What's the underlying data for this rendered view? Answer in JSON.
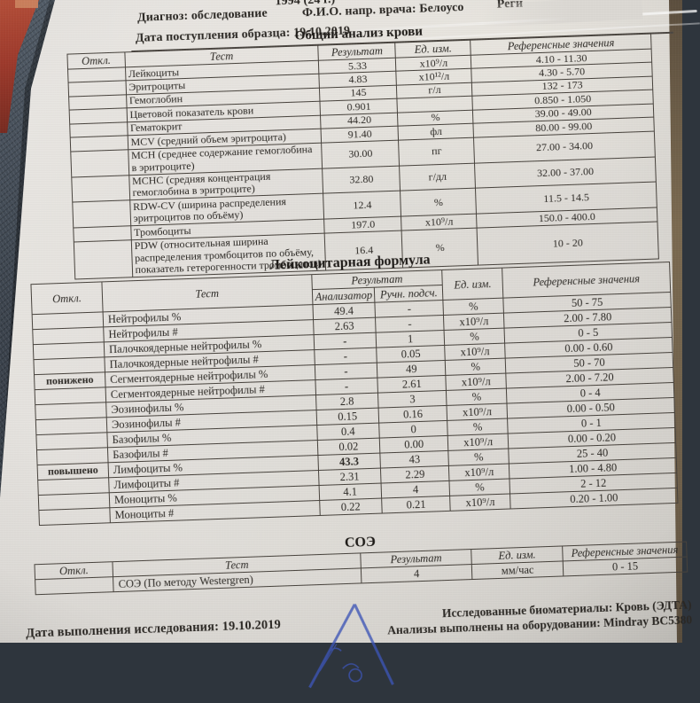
{
  "header": {
    "top_partial_left": "1994 (24 г.)",
    "top_partial_right": "Реги",
    "diagnosis_label": "Диагноз:",
    "diagnosis_value": "обследование",
    "doctor_line": "Ф.И.О. напр. врача: Белоусо",
    "sample_date_label": "Дата поступления образца:",
    "sample_date_value": "19.10.2019"
  },
  "tables": {
    "cbc": {
      "title": "Общий анализ крови",
      "headers": {
        "otkl": "Откл.",
        "test": "Тест",
        "result": "Результат",
        "unit": "Ед. изм.",
        "ref": "Референсные значения"
      },
      "rows": [
        {
          "otkl": "",
          "test": "Лейкоциты",
          "result": "5.33",
          "unit": "x10⁹/л",
          "ref": "4.10 - 11.30"
        },
        {
          "otkl": "",
          "test": "Эритроциты",
          "result": "4.83",
          "unit": "x10¹²/л",
          "ref": "4.30 - 5.70"
        },
        {
          "otkl": "",
          "test": "Гемоглобин",
          "result": "145",
          "unit": "г/л",
          "ref": "132 - 173"
        },
        {
          "otkl": "",
          "test": "Цветовой показатель крови",
          "result": "0.901",
          "unit": "",
          "ref": "0.850 - 1.050"
        },
        {
          "otkl": "",
          "test": "Гематокрит",
          "result": "44.20",
          "unit": "%",
          "ref": "39.00 - 49.00"
        },
        {
          "otkl": "",
          "test": "MCV (средний объем эритроцита)",
          "result": "91.40",
          "unit": "фл",
          "ref": "80.00 - 99.00"
        },
        {
          "otkl": "",
          "test": "MCH (среднее содержание гемоглобина в эритроците)",
          "result": "30.00",
          "unit": "пг",
          "ref": "27.00 - 34.00"
        },
        {
          "otkl": "",
          "test": "MCHC (средняя концентрация гемоглобина в эритроците)",
          "result": "32.80",
          "unit": "г/дл",
          "ref": "32.00 - 37.00"
        },
        {
          "otkl": "",
          "test": "RDW-CV (ширина распределения эритроцитов по объёму)",
          "result": "12.4",
          "unit": "%",
          "ref": "11.5 - 14.5"
        },
        {
          "otkl": "",
          "test": "Тромбоциты",
          "result": "197.0",
          "unit": "x10⁹/л",
          "ref": "150.0 - 400.0"
        },
        {
          "otkl": "",
          "test": "PDW (относительная ширина распределения тромбоцитов по объёму, показатель гетерогенности тромбоцитов)",
          "result": "16.4",
          "unit": "%",
          "ref": "10 - 20"
        }
      ]
    },
    "leukocyte": {
      "title": "Лейкоцитарная формула",
      "headers": {
        "otkl": "Откл.",
        "test": "Тест",
        "result": "Результат",
        "analyzer": "Анализатор",
        "manual": "Ручн. подсч.",
        "unit": "Ед. изм.",
        "ref": "Референсные значения"
      },
      "rows": [
        {
          "otkl": "",
          "test": "Нейтрофилы %",
          "analyzer": "49.4",
          "manual": "-",
          "unit": "%",
          "ref": "50 - 75"
        },
        {
          "otkl": "",
          "test": "Нейтрофилы #",
          "analyzer": "2.63",
          "manual": "-",
          "unit": "x10⁹/л",
          "ref": "2.00 - 7.80"
        },
        {
          "otkl": "",
          "test": "Палочкоядерные нейтрофилы %",
          "analyzer": "-",
          "manual": "1",
          "unit": "%",
          "ref": "0 - 5",
          "bold": [
            "analyzer"
          ]
        },
        {
          "otkl": "",
          "test": "Палочкоядерные нейтрофилы #",
          "analyzer": "-",
          "manual": "0.05",
          "unit": "x10⁹/л",
          "ref": "0.00 - 0.60",
          "bold": [
            "analyzer"
          ]
        },
        {
          "otkl": "понижено",
          "test": "Сегментоядерные нейтрофилы %",
          "analyzer": "-",
          "manual": "49",
          "unit": "%",
          "ref": "50 - 70",
          "bold": [
            "otkl",
            "analyzer"
          ]
        },
        {
          "otkl": "",
          "test": "Сегментоядерные нейтрофилы #",
          "analyzer": "-",
          "manual": "2.61",
          "unit": "x10⁹/л",
          "ref": "2.00 - 7.20",
          "bold": [
            "analyzer"
          ]
        },
        {
          "otkl": "",
          "test": "Эозинофилы %",
          "analyzer": "2.8",
          "manual": "3",
          "unit": "%",
          "ref": "0 - 4"
        },
        {
          "otkl": "",
          "test": "Эозинофилы #",
          "analyzer": "0.15",
          "manual": "0.16",
          "unit": "x10⁹/л",
          "ref": "0.00 - 0.50"
        },
        {
          "otkl": "",
          "test": "Базофилы %",
          "analyzer": "0.4",
          "manual": "0",
          "unit": "%",
          "ref": "0 - 1"
        },
        {
          "otkl": "",
          "test": "Базофилы #",
          "analyzer": "0.02",
          "manual": "0.00",
          "unit": "x10⁹/л",
          "ref": "0.00 - 0.20"
        },
        {
          "otkl": "повышено",
          "test": "Лимфоциты %",
          "analyzer": "43.3",
          "manual": "43",
          "unit": "%",
          "ref": "25 - 40",
          "bold": [
            "otkl",
            "analyzer"
          ]
        },
        {
          "otkl": "",
          "test": "Лимфоциты #",
          "analyzer": "2.31",
          "manual": "2.29",
          "unit": "x10⁹/л",
          "ref": "1.00 - 4.80"
        },
        {
          "otkl": "",
          "test": "Моноциты %",
          "analyzer": "4.1",
          "manual": "4",
          "unit": "%",
          "ref": "2 - 12"
        },
        {
          "otkl": "",
          "test": "Моноциты #",
          "analyzer": "0.22",
          "manual": "0.21",
          "unit": "x10⁹/л",
          "ref": "0.20 - 1.00"
        }
      ]
    },
    "esr": {
      "title": "СОЭ",
      "headers": {
        "otkl": "Откл.",
        "test": "Тест",
        "result": "Результат",
        "unit": "Ед. изм.",
        "ref": "Референсные значения"
      },
      "rows": [
        {
          "otkl": "",
          "test": "СОЭ (По методу Westergren)",
          "result": "4",
          "unit": "мм/час",
          "ref": "0 - 15"
        }
      ]
    }
  },
  "footer": {
    "biomaterials": "Исследованные биоматериалы: Кровь (ЭДТА)",
    "equipment": "Анализы выполнены на оборудовании: Mindray BC5380",
    "exec_date_label": "Дата выполнения исследования:",
    "exec_date_value": "19.10.2019"
  },
  "stamp": {
    "shape": "triangle",
    "color": "#3d55b8"
  },
  "colors": {
    "paper": "#dedbd6",
    "ink": "#2b2824",
    "table_border": "#47423c",
    "denim": "#3c444e",
    "red_corner": "#9e3a2c",
    "brown_edge": "#6e5f4a",
    "stamp_blue": "#3d55b8"
  }
}
